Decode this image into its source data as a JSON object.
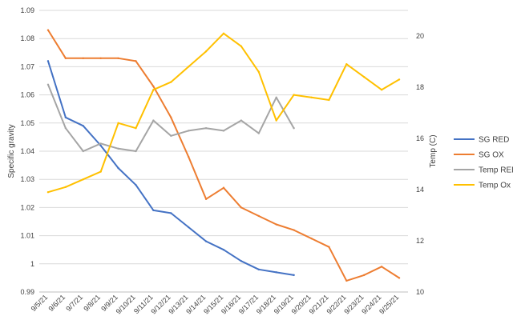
{
  "chart_data": {
    "type": "line",
    "title": "",
    "ylabel": "Specific gravity",
    "y2label": "Temp (C)",
    "ylim": [
      0.99,
      1.09
    ],
    "y2lim": [
      10,
      21
    ],
    "yticks": [
      "0.99",
      "1",
      "1.01",
      "1.02",
      "1.03",
      "1.04",
      "1.05",
      "1.06",
      "1.07",
      "1.08",
      "1.09"
    ],
    "y2ticks": [
      "10",
      "12",
      "14",
      "16",
      "18",
      "20"
    ],
    "categories": [
      "9/5/21",
      "9/6/21",
      "9/7/21",
      "9/8/21",
      "9/9/21",
      "9/10/21",
      "9/11/21",
      "9/12/21",
      "9/13/21",
      "9/14/21",
      "9/15/21",
      "9/16/21",
      "9/17/21",
      "9/18/21",
      "9/19/21",
      "9/20/21",
      "9/21/21",
      "9/22/21",
      "9/23/21",
      "9/24/21",
      "9/25/21"
    ],
    "grid": true,
    "legend_position": "right",
    "series": [
      {
        "name": "SG RED",
        "axis": "left",
        "color": "#4472C4",
        "values": [
          1.072,
          1.052,
          1.049,
          1.042,
          1.034,
          1.028,
          1.019,
          1.018,
          1.013,
          1.008,
          1.005,
          1.001,
          0.998,
          0.997,
          0.996,
          null,
          null,
          null,
          null,
          null,
          null
        ]
      },
      {
        "name": "SG OX",
        "axis": "left",
        "color": "#ED7D31",
        "values": [
          1.083,
          1.073,
          1.073,
          1.073,
          1.073,
          1.072,
          1.063,
          1.052,
          1.038,
          1.023,
          1.027,
          1.02,
          1.017,
          1.014,
          1.012,
          1.009,
          1.006,
          0.994,
          0.996,
          0.999,
          0.995
        ]
      },
      {
        "name": "Temp RED",
        "axis": "right",
        "color": "#A5A5A5",
        "values": [
          18.1,
          16.4,
          15.5,
          15.8,
          15.6,
          15.5,
          16.7,
          16.1,
          16.3,
          16.4,
          16.3,
          16.7,
          16.2,
          17.6,
          16.4,
          null,
          null,
          null,
          null,
          null,
          null
        ]
      },
      {
        "name": "Temp Ox",
        "axis": "right",
        "color": "#FFC000",
        "values": [
          13.9,
          14.1,
          14.4,
          14.7,
          16.6,
          16.4,
          17.9,
          18.2,
          18.8,
          19.4,
          20.1,
          19.6,
          18.6,
          16.7,
          17.7,
          17.6,
          17.5,
          18.9,
          18.4,
          17.9,
          18.3
        ]
      }
    ]
  }
}
